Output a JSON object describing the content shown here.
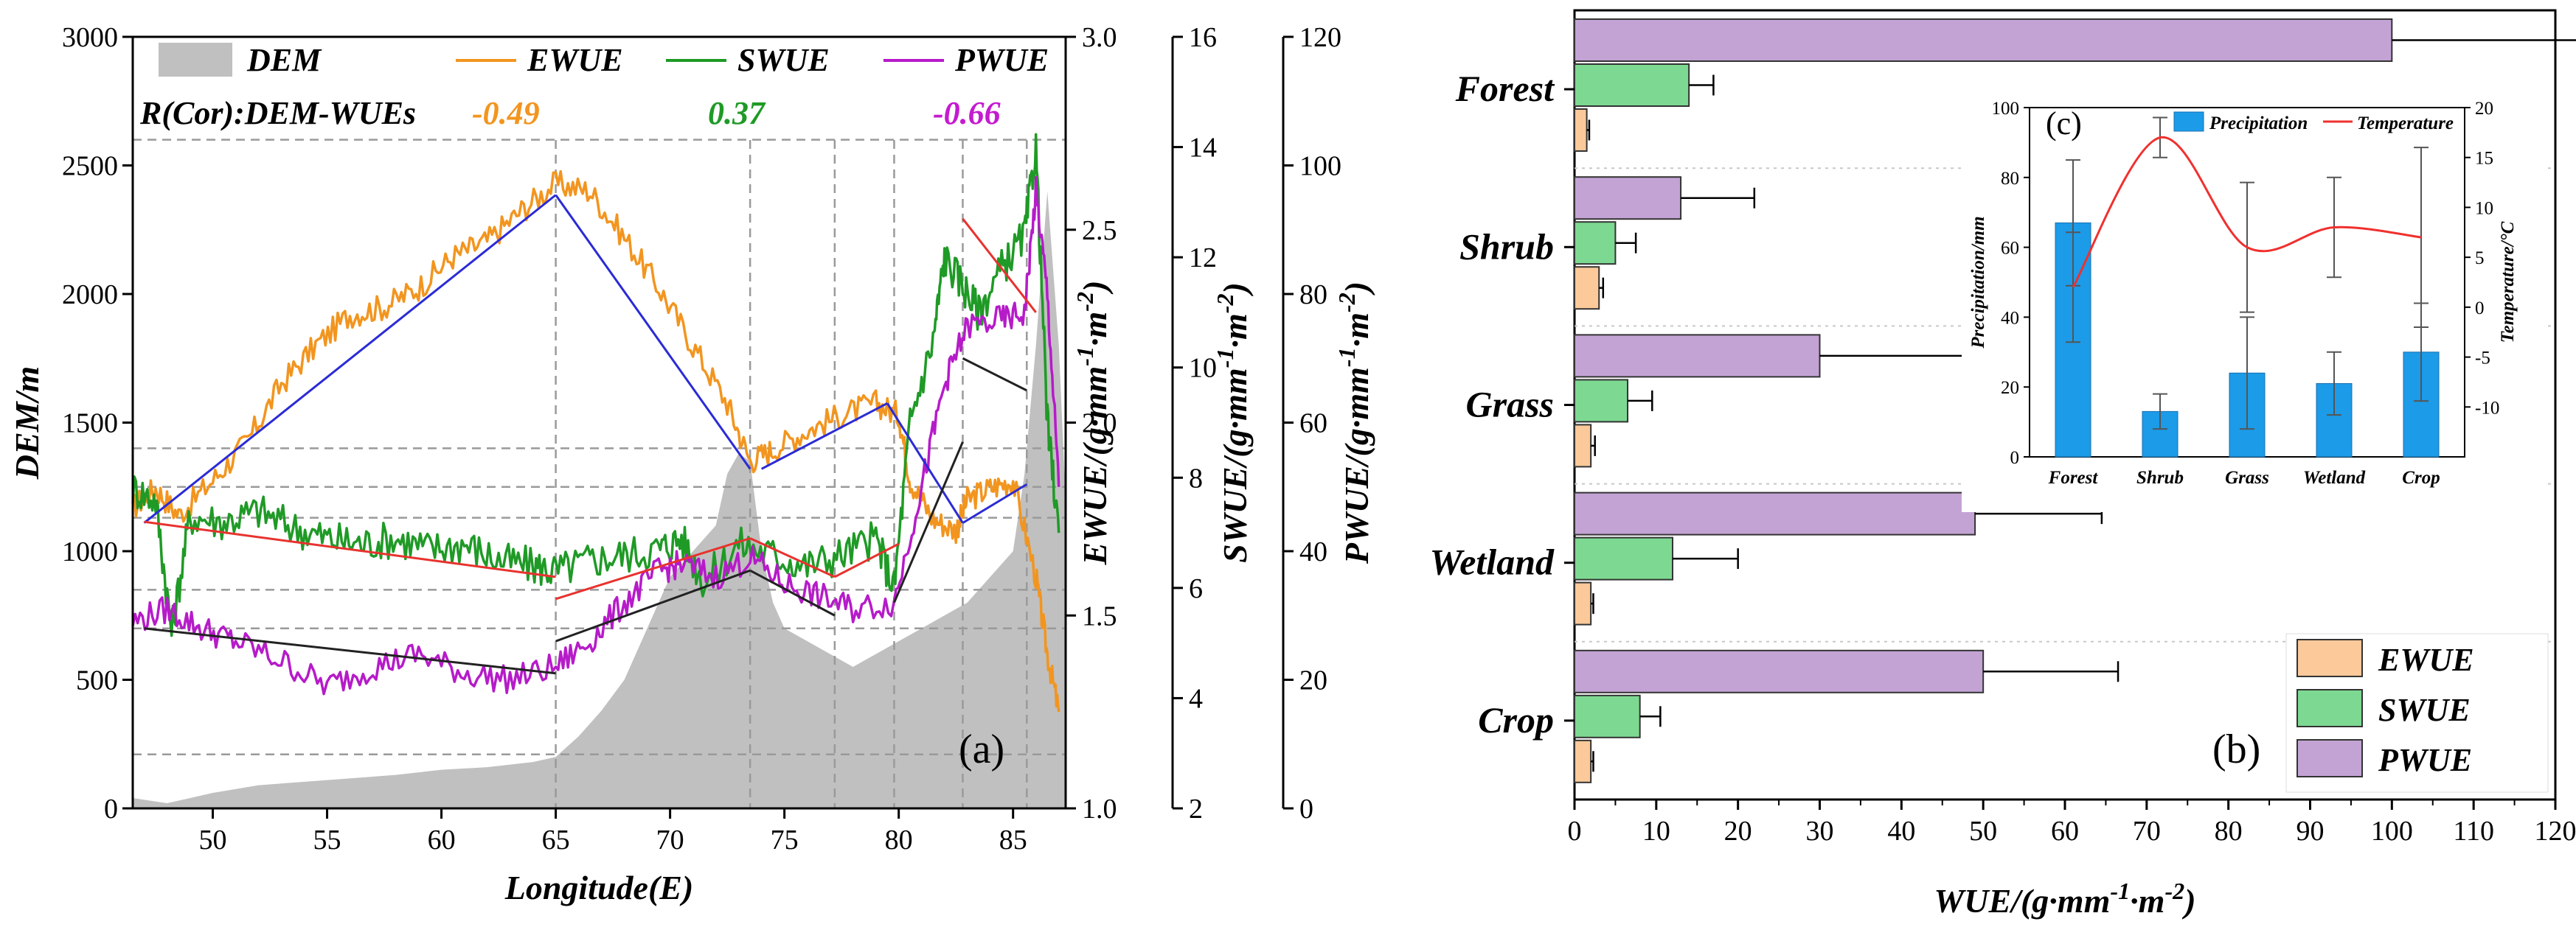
{
  "chart_data": [
    {
      "id": "a",
      "type": "line",
      "panel_label": "(a)",
      "xlabel": "Longitude(E)",
      "ylabel": "DEM/m",
      "x_ticks": [
        50,
        55,
        60,
        65,
        70,
        75,
        80,
        85
      ],
      "xlim": [
        46.5,
        87.3
      ],
      "y_axes": [
        {
          "label": "DEM/m",
          "lim": [
            0,
            3000
          ],
          "ticks": [
            0,
            500,
            1000,
            1500,
            2000,
            2500,
            3000
          ]
        },
        {
          "label": "EWUE/(g·mm⁻¹·m⁻²)",
          "lim": [
            1.0,
            3.0
          ],
          "ticks": [
            "1.0",
            "1.5",
            "2.0",
            "2.5",
            "3.0"
          ]
        },
        {
          "label": "SWUE/(g·mm⁻¹·m⁻²)",
          "lim": [
            2,
            16
          ],
          "ticks": [
            "2",
            "4",
            "6",
            "8",
            "10",
            "12",
            "14",
            "16"
          ]
        },
        {
          "label": "PWUE/(g·mm⁻¹·m⁻²)",
          "lim": [
            0,
            120
          ],
          "ticks": [
            "0",
            "20",
            "40",
            "60",
            "80",
            "100",
            "120"
          ]
        }
      ],
      "legend": {
        "position": "top-left",
        "entries": [
          {
            "name": "DEM",
            "color": "#c0c0c0",
            "kind": "area"
          },
          {
            "name": "EWUE",
            "color": "#f2951f",
            "kind": "line"
          },
          {
            "name": "SWUE",
            "color": "#1f9a26",
            "kind": "line"
          },
          {
            "name": "PWUE",
            "color": "#b61bc9",
            "kind": "line"
          }
        ]
      },
      "correlation": {
        "label": "R(Cor):DEM-WUEs",
        "values": [
          {
            "series": "EWUE",
            "value": "-0.49",
            "color": "#f2951f"
          },
          {
            "series": "SWUE",
            "value": "0.37",
            "color": "#1f9a26"
          },
          {
            "series": "PWUE",
            "value": "-0.66",
            "color": "#c41bd0"
          }
        ]
      },
      "breakpoints_x": [
        65,
        73.5,
        77.2,
        79.8,
        82.8,
        85.6
      ],
      "reference_levels_dem": [
        2600,
        1400,
        1250,
        1130,
        850,
        700,
        210
      ],
      "dem_profile": {
        "x": [
          46.5,
          48,
          50,
          52,
          55,
          58,
          60,
          62,
          64,
          65,
          66,
          67,
          68,
          69,
          70,
          71,
          72,
          72.5,
          73,
          73.5,
          74,
          74.5,
          75,
          76,
          77,
          78,
          79,
          80,
          81,
          82,
          83,
          84,
          85,
          85.5,
          86,
          86.5,
          87,
          87.3
        ],
        "y": [
          40,
          20,
          60,
          90,
          110,
          130,
          150,
          160,
          180,
          200,
          280,
          380,
          500,
          700,
          900,
          1000,
          1100,
          1300,
          1380,
          1350,
          1000,
          800,
          700,
          650,
          600,
          550,
          600,
          650,
          700,
          750,
          800,
          900,
          1000,
          1300,
          1800,
          2400,
          1800,
          1200
        ]
      },
      "series": [
        {
          "name": "EWUE",
          "axis": "EWUE",
          "color": "#f2951f",
          "x": [
            46.5,
            47.5,
            48.5,
            50,
            51.5,
            53,
            54.5,
            56,
            57.5,
            59,
            60.5,
            62,
            63.5,
            65,
            66.5,
            68,
            69.5,
            71,
            72.5,
            73.5,
            74.5,
            76,
            77.5,
            79,
            80,
            80.5,
            81.5,
            82.5,
            83,
            84,
            85,
            86,
            86.5,
            87
          ],
          "y": [
            1.78,
            1.83,
            1.76,
            1.85,
            1.95,
            2.1,
            2.2,
            2.28,
            2.3,
            2.35,
            2.43,
            2.47,
            2.55,
            2.62,
            2.6,
            2.48,
            2.35,
            2.2,
            2.05,
            1.9,
            1.93,
            1.98,
            2.02,
            2.05,
            2.02,
            1.85,
            1.75,
            1.72,
            1.8,
            1.83,
            1.85,
            1.6,
            1.4,
            1.25
          ]
        },
        {
          "name": "SWUE",
          "axis": "SWUE",
          "color": "#1f9a26",
          "x": [
            46.5,
            47.5,
            48.2,
            49,
            50.5,
            52,
            53.5,
            55,
            56.5,
            58,
            59.5,
            61,
            62.5,
            64,
            65,
            66.5,
            68,
            69.5,
            70.5,
            71.5,
            73,
            74.5,
            76,
            77.5,
            79,
            79.8,
            80.5,
            81.5,
            82,
            82.8,
            83.5,
            84.5,
            85.5,
            86,
            86.5,
            87
          ],
          "y": [
            7.8,
            7.6,
            5.2,
            7.3,
            7.2,
            7.4,
            7.1,
            6.9,
            6.8,
            6.9,
            6.7,
            6.8,
            6.5,
            6.4,
            6.3,
            6.5,
            6.6,
            6.7,
            6.9,
            6.1,
            6.8,
            6.6,
            6.4,
            6.6,
            6.9,
            6.0,
            9.0,
            10.5,
            12.0,
            11.5,
            11.0,
            11.8,
            12.4,
            14.0,
            9.0,
            7.0
          ]
        },
        {
          "name": "PWUE",
          "axis": "PWUE",
          "color": "#b61bc9",
          "x": [
            46.5,
            48,
            49.5,
            51,
            53,
            55,
            57,
            59,
            61,
            63,
            65,
            66.5,
            68,
            69.5,
            70.5,
            72,
            73.5,
            75,
            76.5,
            78,
            79.8,
            81,
            82,
            83,
            84.5,
            85.5,
            86,
            86.5,
            87
          ],
          "y": [
            29,
            31,
            28,
            26,
            23,
            19,
            22,
            24,
            21,
            20,
            22,
            26,
            32,
            37,
            38,
            36,
            39,
            35,
            33,
            31,
            32,
            50,
            66,
            75,
            76,
            77,
            96,
            80,
            50
          ]
        }
      ]
    },
    {
      "id": "b",
      "type": "bar",
      "orientation": "horizontal",
      "panel_label": "(b)",
      "xlabel": "WUE/(g·mm⁻¹·m⁻²)",
      "xlim": [
        0,
        120
      ],
      "x_ticks": [
        "0",
        "10",
        "20",
        "30",
        "40",
        "50",
        "60",
        "70",
        "80",
        "90",
        "100",
        "110",
        "120"
      ],
      "categories": [
        "Forest",
        "Shrub",
        "Grass",
        "Wetland",
        "Crop"
      ],
      "legend": {
        "position": "bottom-right"
      },
      "series": [
        {
          "name": "EWUE",
          "color": "#fbc99a",
          "values": [
            1.5,
            3.0,
            2.0,
            2.0,
            2.0
          ],
          "errors": [
            0.3,
            0.5,
            0.5,
            0.3,
            0.3
          ]
        },
        {
          "name": "SWUE",
          "color": "#7dd992",
          "values": [
            14.0,
            5.0,
            6.5,
            12.0,
            8.0
          ],
          "errors": [
            3.0,
            2.5,
            3.0,
            8.0,
            2.5
          ]
        },
        {
          "name": "PWUE",
          "color": "#c3a3d4",
          "values": [
            100.0,
            13.0,
            30.0,
            49.0,
            50.0
          ],
          "errors": [
            23.0,
            9.0,
            18.0,
            15.5,
            16.5
          ]
        }
      ]
    },
    {
      "id": "c",
      "type": "bar",
      "panel_label": "(c)",
      "categories": [
        "Forest",
        "Shrub",
        "Grass",
        "Wetland",
        "Crop"
      ],
      "ylabel": "Precipitation/mm",
      "y2label": "Temperature/°C",
      "ylim": [
        0,
        100
      ],
      "y_ticks": [
        "0",
        "20",
        "40",
        "60",
        "80",
        "100"
      ],
      "y2lim": [
        -15,
        20
      ],
      "y2_ticks": [
        "-10",
        "-5",
        "0",
        "5",
        "10",
        "15",
        "20"
      ],
      "legend": {
        "position": "top"
      },
      "series": [
        {
          "name": "Precipitation",
          "kind": "bar",
          "color": "#1c9be8",
          "values": [
            67,
            13,
            24,
            21,
            30
          ],
          "errors": [
            18,
            5,
            16,
            9,
            14
          ]
        },
        {
          "name": "Temperature",
          "kind": "line",
          "color": "#f0302e",
          "values": [
            2.0,
            17.0,
            6.0,
            8.0,
            7.0
          ],
          "errors": [
            5.5,
            2.0,
            6.5,
            5.0,
            9.0
          ]
        }
      ]
    }
  ]
}
